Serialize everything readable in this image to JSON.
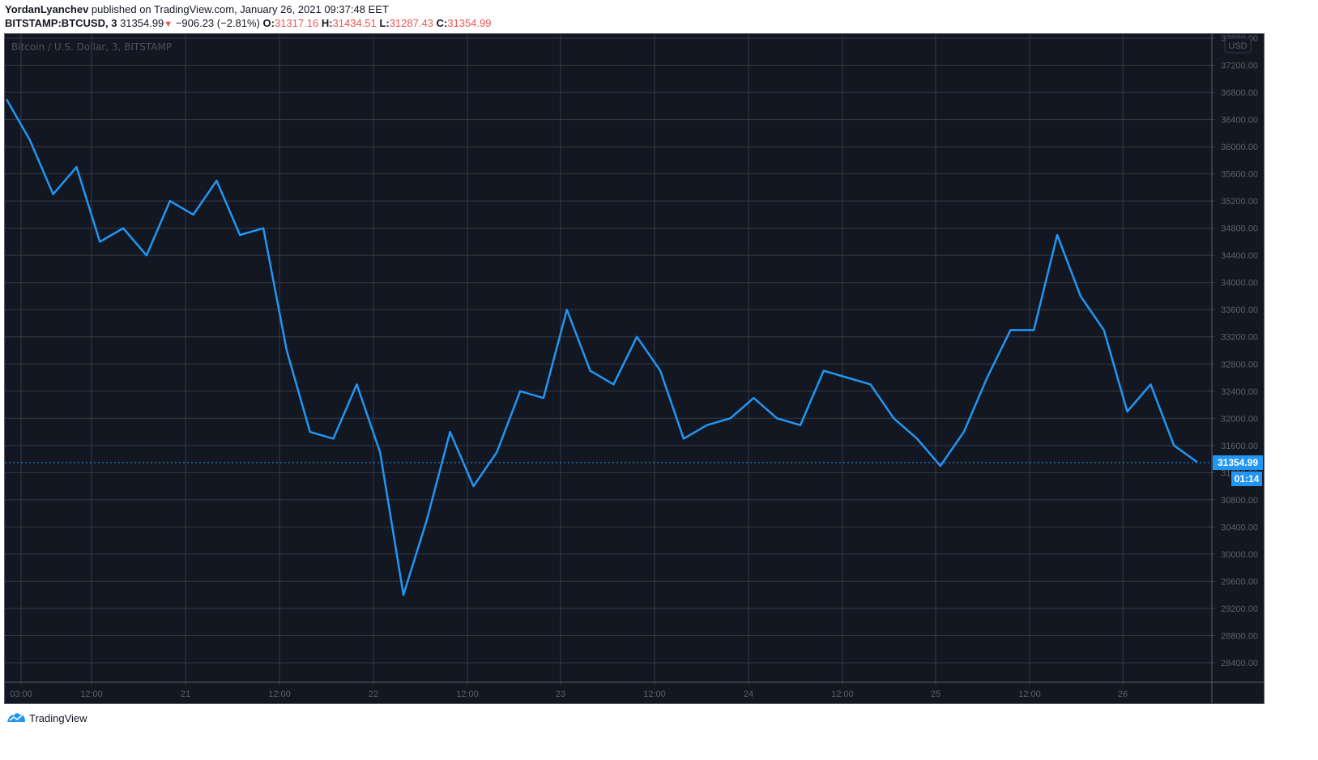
{
  "header": {
    "author": "YordanLyanchev",
    "published_text": " published on TradingView.com, January 26, 2021 09:37:48 EET",
    "symbol": "BITSTAMP:BTCUSD, 3",
    "last_price": "31354.99",
    "change": "−906.23 (−2.81%)",
    "open_label": "O:",
    "open": "31317.16",
    "high_label": "H:",
    "high": "31434.51",
    "low_label": "L:",
    "low": "31287.43",
    "close_label": "C:",
    "close": "31354.99"
  },
  "chart": {
    "legend": "Bitcoin / U.S. Dollar, 3, BITSTAMP",
    "currency_badge": "USD",
    "price_tag": "31354.99",
    "countdown_tag": "01:14",
    "colors": {
      "background": "#131722",
      "line": "#2196f3",
      "grid": "#363a45",
      "axis_text": "#5d606b",
      "price_tag_bg": "#2196f3",
      "down": "#ef5350"
    }
  },
  "footer": {
    "brand": "TradingView"
  },
  "chart_data": {
    "type": "line",
    "title": "Bitcoin / U.S. Dollar, 3, BITSTAMP",
    "xlabel": "",
    "ylabel": "USD",
    "ylim": [
      28200,
      37700
    ],
    "grid": true,
    "legend_position": "top-left",
    "x_tick_labels": [
      "03:00",
      "12:00",
      "21",
      "12:00",
      "22",
      "12:00",
      "23",
      "12:00",
      "24",
      "12:00",
      "25",
      "12:00",
      "26"
    ],
    "y_tick_labels": [
      "37600.00",
      "37200.00",
      "36800.00",
      "36400.00",
      "36000.00",
      "35600.00",
      "35200.00",
      "34800.00",
      "34400.00",
      "34000.00",
      "33600.00",
      "33200.00",
      "32800.00",
      "32400.00",
      "32000.00",
      "31600.00",
      "31200.00",
      "30800.00",
      "30400.00",
      "30000.00",
      "29600.00",
      "29200.00",
      "28800.00",
      "28400.00"
    ],
    "annotations": [
      "Last price 31354.99",
      "Bar countdown 01:14"
    ],
    "series": [
      {
        "name": "BTCUSD",
        "x": [
          "20 00:00",
          "20 03:00",
          "20 06:00",
          "20 09:00",
          "20 12:00",
          "20 15:00",
          "20 18:00",
          "20 21:00",
          "21 00:00",
          "21 03:00",
          "21 06:00",
          "21 09:00",
          "21 12:00",
          "21 15:00",
          "21 18:00",
          "21 21:00",
          "22 00:00",
          "22 03:00",
          "22 06:00",
          "22 09:00",
          "22 12:00",
          "22 15:00",
          "22 18:00",
          "22 21:00",
          "23 00:00",
          "23 03:00",
          "23 06:00",
          "23 09:00",
          "23 12:00",
          "23 15:00",
          "23 18:00",
          "23 21:00",
          "24 00:00",
          "24 03:00",
          "24 06:00",
          "24 09:00",
          "24 12:00",
          "24 15:00",
          "24 18:00",
          "24 21:00",
          "25 00:00",
          "25 03:00",
          "25 06:00",
          "25 09:00",
          "25 12:00",
          "25 15:00",
          "25 18:00",
          "25 21:00",
          "26 00:00",
          "26 03:00",
          "26 06:00",
          "26 09:00"
        ],
        "values": [
          36700,
          36100,
          35300,
          35700,
          34600,
          34800,
          34400,
          35200,
          35000,
          35500,
          34700,
          34800,
          33000,
          31800,
          31700,
          32500,
          31500,
          29400,
          30500,
          31800,
          31000,
          31500,
          32400,
          32300,
          33600,
          32700,
          32500,
          33200,
          32700,
          31700,
          31900,
          32000,
          32300,
          32000,
          31900,
          32700,
          32600,
          32500,
          32000,
          31700,
          31300,
          31800,
          32600,
          33300,
          33300,
          34700,
          33800,
          33300,
          32100,
          32500,
          31600,
          31355
        ]
      }
    ]
  }
}
